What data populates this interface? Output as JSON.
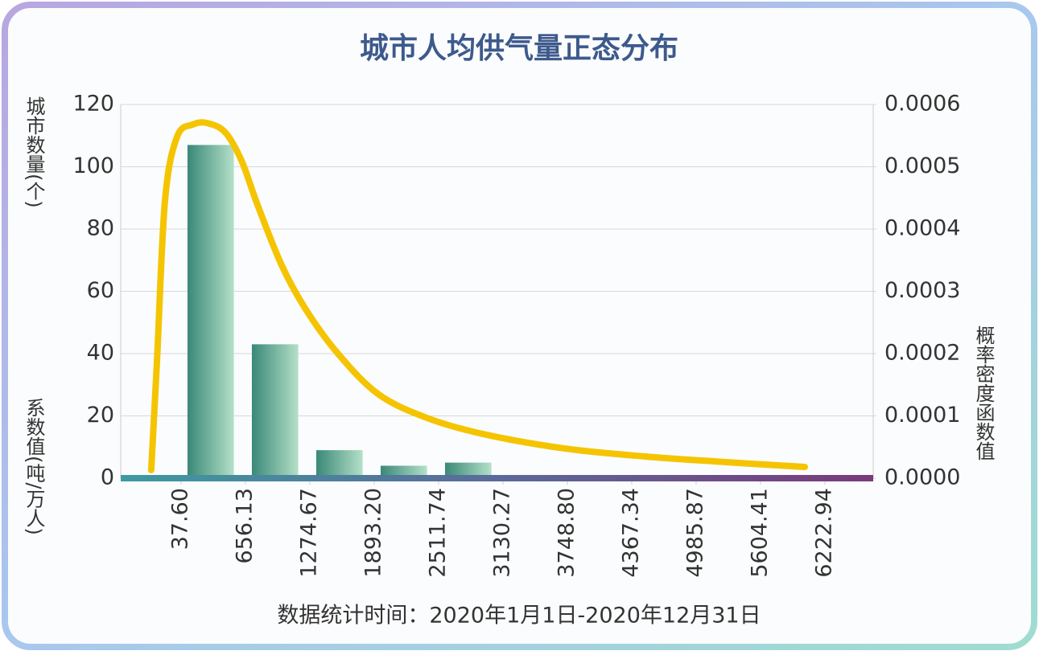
{
  "chart_data": {
    "type": "histogram",
    "title": "城市人均供气量正态分布",
    "y_label": "城市数量(个)",
    "y2_label": "概率密度函数值",
    "annotations": [
      "系数值(吨/万人)"
    ],
    "footer": "数据统计时间：2020年1月1日-2020年12月31日",
    "bins": [
      37.6,
      656.13,
      1274.67,
      1893.2,
      2511.74,
      3130.27,
      3748.8,
      4367.34,
      4985.87,
      5604.41,
      6222.94
    ],
    "counts": [
      107,
      43,
      9,
      4,
      5,
      1,
      1,
      0,
      1,
      1
    ],
    "bar_colors": [
      "#3a8878",
      "#b4e0c8"
    ],
    "xlim": [
      -542,
      6687
    ],
    "xticks": [
      {
        "value": 37.6,
        "label": "37.60"
      },
      656.13,
      1274.67,
      {
        "value": 1893.2,
        "label": "1893.20"
      },
      2511.74,
      3130.27,
      {
        "value": 3748.8,
        "label": "3748.80"
      },
      4367.34,
      4985.87,
      5604.41,
      6222.94
    ],
    "ylim": [
      0,
      120
    ],
    "yticks": [
      0,
      20,
      40,
      60,
      80,
      100,
      120
    ],
    "y2lim": [
      0,
      0.0006
    ],
    "y2ticks": [
      {
        "value": 0,
        "label": "0.0000"
      },
      0.0001,
      0.0002,
      0.0003,
      0.0004,
      0.0005,
      0.0006
    ],
    "grid": true,
    "series": [
      {
        "name": "概率密度函数值",
        "axis": "y2",
        "color": "#f5c400",
        "x": [
          -249,
          -194,
          -117,
          -1,
          154,
          293,
          463,
          618,
          772,
          1004,
          1236,
          1545,
          1932,
          2396,
          2937,
          3710,
          4483,
          5256,
          6030
        ],
        "values": [
          1.3e-05,
          0.000187,
          0.000445,
          0.000548,
          0.000568,
          0.00057,
          0.000555,
          0.00051,
          0.000439,
          0.000342,
          0.000271,
          0.0002,
          0.000135,
          9.7e-05,
          7.1e-05,
          4.8e-05,
          3.5e-05,
          2.6e-05,
          1.8e-05
        ]
      }
    ]
  }
}
